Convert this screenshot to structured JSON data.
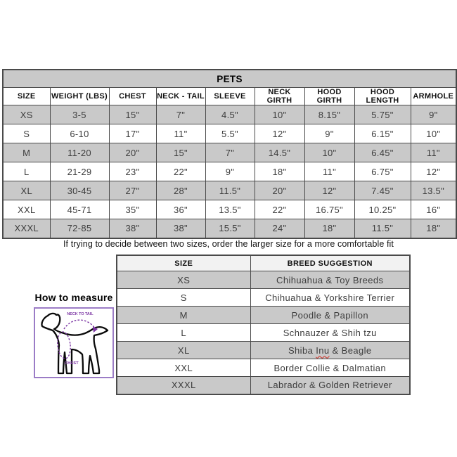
{
  "main_table": {
    "title": "PETS",
    "columns": [
      "SIZE",
      "WEIGHT (LBS)",
      "CHEST",
      "NECK - TAIL",
      "SLEEVE",
      "NECK GIRTH",
      "HOOD GIRTH",
      "HOOD LENGTH",
      "ARMHOLE"
    ],
    "rows": [
      [
        "XS",
        "3-5",
        "15\"",
        "7\"",
        "4.5\"",
        "10\"",
        "8.15\"",
        "5.75\"",
        "9\""
      ],
      [
        "S",
        "6-10",
        "17\"",
        "11\"",
        "5.5\"",
        "12\"",
        "9\"",
        "6.15\"",
        "10\""
      ],
      [
        "M",
        "11-20",
        "20\"",
        "15\"",
        "7\"",
        "14.5\"",
        "10\"",
        "6.45\"",
        "11\""
      ],
      [
        "L",
        "21-29",
        "23\"",
        "22\"",
        "9\"",
        "18\"",
        "11\"",
        "6.75\"",
        "12\""
      ],
      [
        "XL",
        "30-45",
        "27\"",
        "28\"",
        "11.5\"",
        "20\"",
        "12\"",
        "7.45\"",
        "13.5\""
      ],
      [
        "XXL",
        "45-71",
        "35\"",
        "36\"",
        "13.5\"",
        "22\"",
        "16.75\"",
        "10.25\"",
        "16\""
      ],
      [
        "XXXL",
        "72-85",
        "38\"",
        "38\"",
        "15.5\"",
        "24\"",
        "18\"",
        "11.5\"",
        "18\""
      ]
    ]
  },
  "note": "If trying to decide between two sizes, order the larger size for a more comfortable fit",
  "breed_table": {
    "columns": [
      "SIZE",
      "BREED SUGGESTION"
    ],
    "rows": [
      [
        "XS",
        "Chihuahua & Toy Breeds"
      ],
      [
        "S",
        "Chihuahua & Yorkshire Terrier"
      ],
      [
        "M",
        "Poodle & Papillon"
      ],
      [
        "L",
        "Schnauzer & Shih tzu"
      ],
      [
        "XL",
        "Shiba Inu & Beagle"
      ],
      [
        "XXL",
        "Border Collie & Dalmatian"
      ],
      [
        "XXXL",
        "Labrador & Golden Retriever"
      ]
    ],
    "spellcheck_word": "Inu"
  },
  "measure": {
    "title": "How to measure",
    "labels": {
      "neck_to_tail": "NECK TO TAIL",
      "chest": "CHEST"
    }
  },
  "colors": {
    "row_gray": "#c9c9c9",
    "breed_header_gray": "#f2f2f2",
    "table_border": "#4a4a4a",
    "purple_accent": "#7b35a3",
    "box_border_purple": "#9b7cc6",
    "squiggle_red": "#d12a1e"
  }
}
